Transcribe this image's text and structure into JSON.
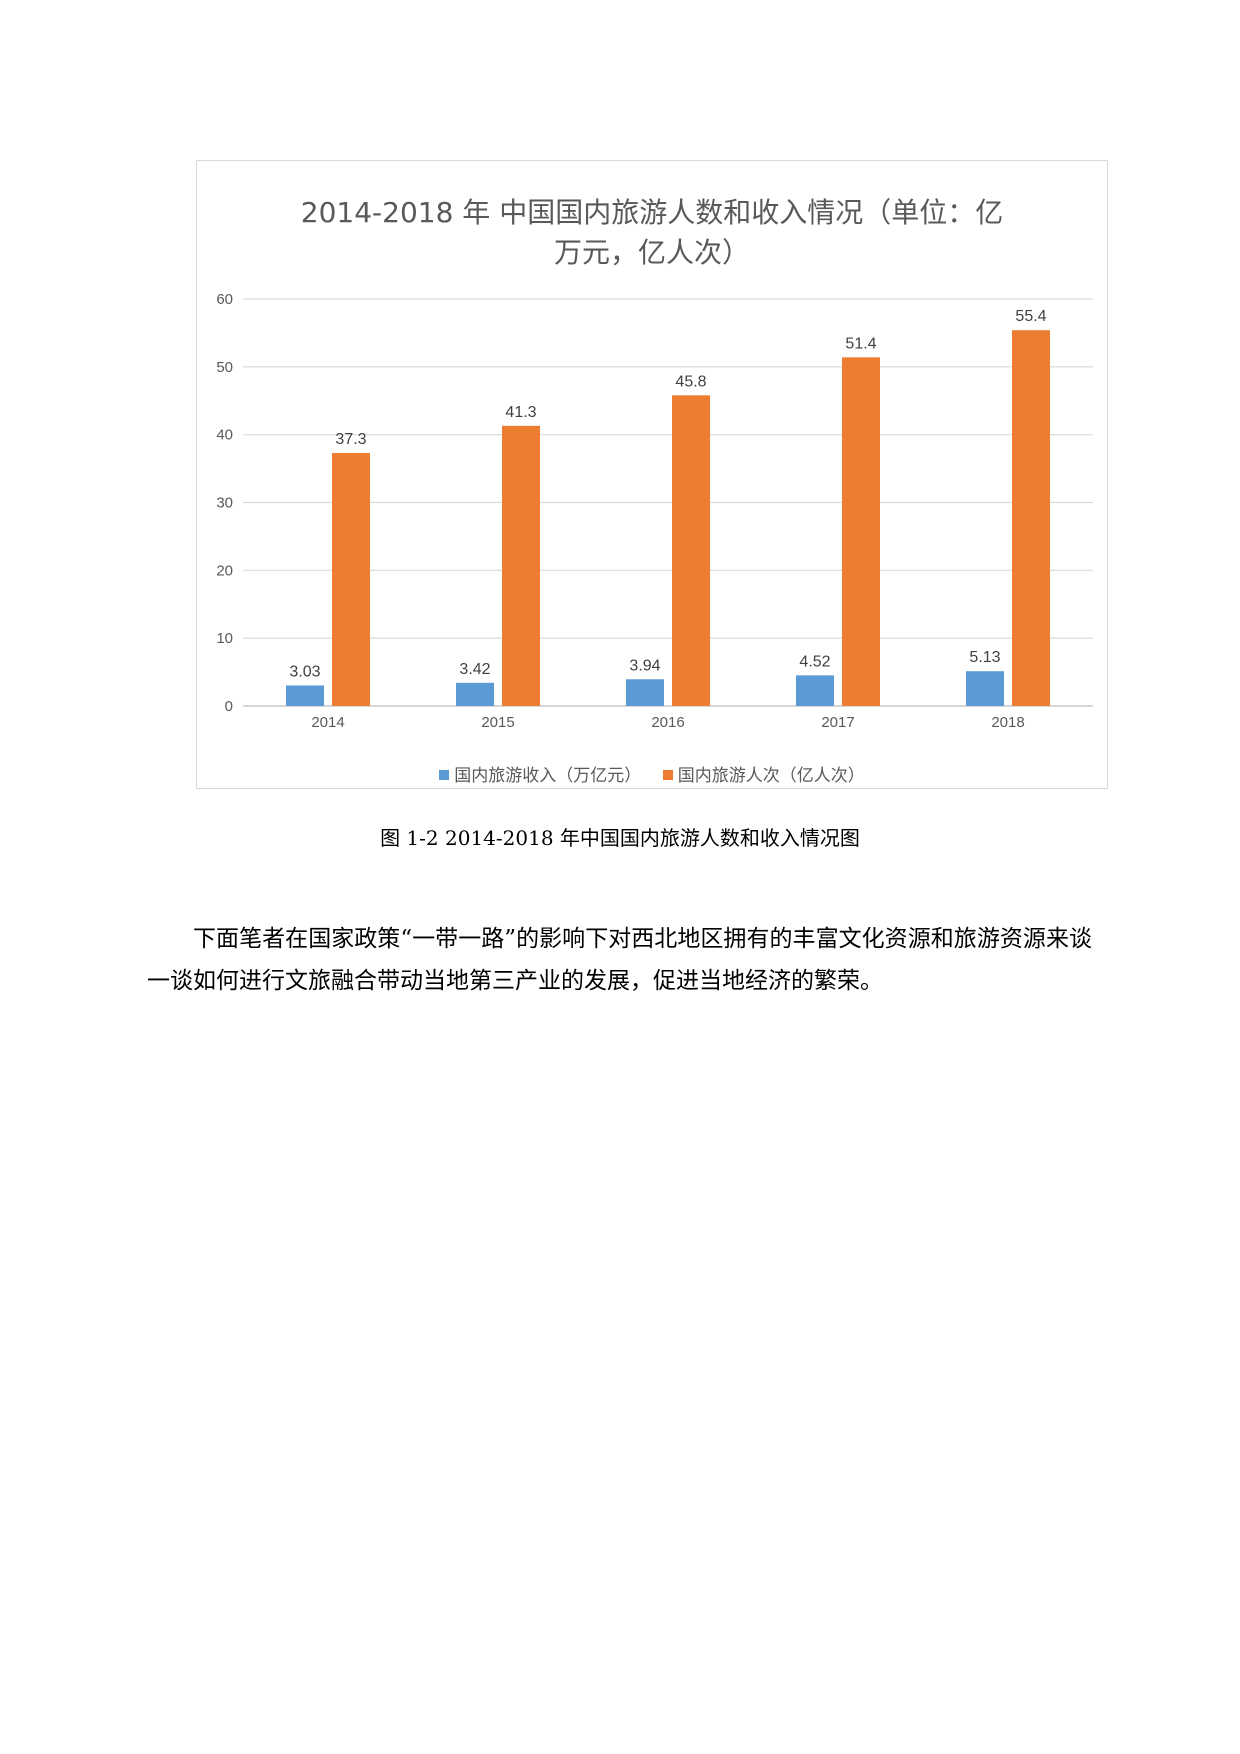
{
  "chart_data": {
    "type": "bar",
    "title": "2014-2018 年 中国国内旅游人数和收入情况（单位：亿万元，亿人次）",
    "title_lines": [
      "2014-2018 年 中国国内旅游人数和收入情况（单位：亿",
      "万元，亿人次）"
    ],
    "categories": [
      "2014",
      "2015",
      "2016",
      "2017",
      "2018"
    ],
    "series": [
      {
        "name": "国内旅游收入（万亿元）",
        "values": [
          3.03,
          3.42,
          3.94,
          4.52,
          5.13
        ],
        "color": "#5b9bd5"
      },
      {
        "name": "国内旅游人次（亿人次）",
        "values": [
          37.3,
          41.3,
          45.8,
          51.4,
          55.4
        ],
        "color": "#ed7d31"
      }
    ],
    "ylim": [
      0,
      60
    ],
    "yticks": [
      0,
      10,
      20,
      30,
      40,
      50,
      60
    ],
    "grid": true,
    "legend_position": "bottom"
  },
  "caption": "图 1-2 2014-2018 年中国国内旅游人数和收入情况图",
  "paragraph": "下面笔者在国家政策“一带一路”的影响下对西北地区拥有的丰富文化资源和旅游资源来谈一谈如何进行文旅融合带动当地第三产业的发展，促进当地经济的繁荣。"
}
